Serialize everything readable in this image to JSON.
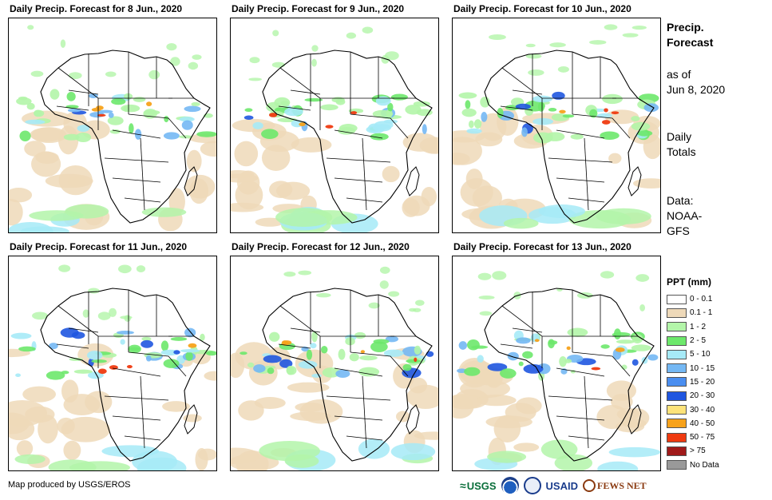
{
  "panels": [
    {
      "title": "Daily Precip. Forecast for 8 Jun., 2020"
    },
    {
      "title": "Daily Precip. Forecast for 9 Jun., 2020"
    },
    {
      "title": "Daily Precip. Forecast for 10 Jun., 2020"
    },
    {
      "title": "Daily Precip. Forecast for 11 Jun., 2020"
    },
    {
      "title": "Daily Precip. Forecast for 12 Jun., 2020"
    },
    {
      "title": "Daily Precip. Forecast for 13 Jun., 2020"
    }
  ],
  "side": {
    "heading_line1": "Precip.",
    "heading_line2": "Forecast",
    "asof_line1": "as of",
    "asof_line2": "Jun 8, 2020",
    "totals_line1": "Daily",
    "totals_line2": "Totals",
    "data_line1": "Data:",
    "data_line2": "NOAA-",
    "data_line3": "GFS"
  },
  "legend": {
    "title": "PPT (mm)",
    "items": [
      {
        "label": "0 - 0.1",
        "color": "#ffffff"
      },
      {
        "label": "0.1 - 1",
        "color": "#eed9b9"
      },
      {
        "label": "1 - 2",
        "color": "#b3f5a9"
      },
      {
        "label": "2 - 5",
        "color": "#6de86b"
      },
      {
        "label": "5 - 10",
        "color": "#a6eaf7"
      },
      {
        "label": "10 - 15",
        "color": "#74b8f4"
      },
      {
        "label": "15 - 20",
        "color": "#4a8ef0"
      },
      {
        "label": "20 - 30",
        "color": "#1f56e0"
      },
      {
        "label": "30 - 40",
        "color": "#fde37a"
      },
      {
        "label": "40 - 50",
        "color": "#f7a21b"
      },
      {
        "label": "50 - 75",
        "color": "#ef3a10"
      },
      {
        "label": "> 75",
        "color": "#a01a1a"
      },
      {
        "label": "No Data",
        "color": "#999999"
      }
    ]
  },
  "footer": {
    "credit": "Map produced by USGS/EROS",
    "logo_usgs": "USGS",
    "logo_usaid": "USAID",
    "logo_fews": "FEWS NET"
  }
}
